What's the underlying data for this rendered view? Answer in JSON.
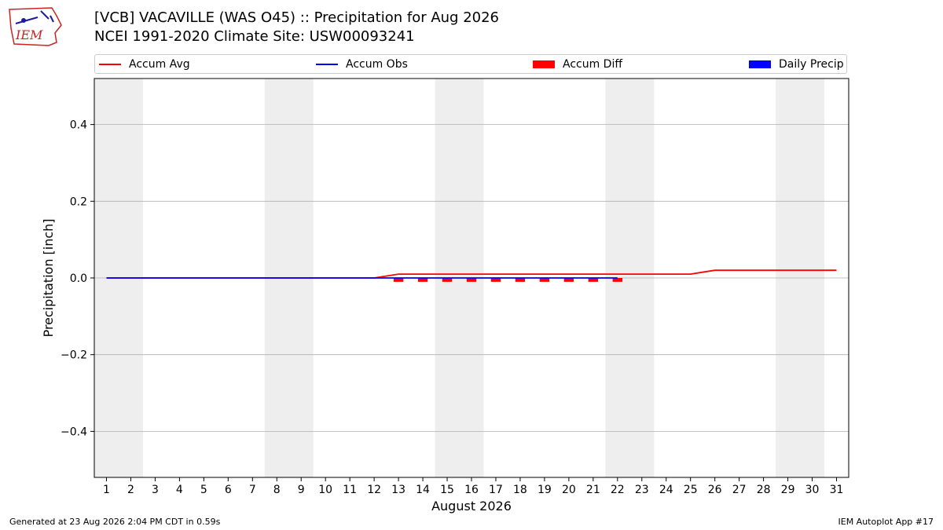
{
  "logo": {
    "text": "IEM"
  },
  "header": {
    "title_line1": "[VCB] VACAVILLE (WAS O45) :: Precipitation for Aug 2026",
    "title_line2": "NCEI 1991-2020 Climate Site: USW00093241"
  },
  "legend": {
    "accum_avg": "Accum Avg",
    "accum_obs": "Accum Obs",
    "accum_diff": "Accum Diff",
    "daily_precip": "Daily Precip"
  },
  "colors": {
    "accum_avg": "#ff0000",
    "accum_obs": "#0000ff",
    "accum_diff": "#ff0000",
    "daily_precip": "#0000ff",
    "weekend_shade": "#eeeeee",
    "grid": "#b0b0b0"
  },
  "footer": {
    "generated": "Generated at 23 Aug 2026 2:04 PM CDT in 0.59s",
    "app": "IEM Autoplot App #17"
  },
  "chart_data": {
    "type": "line",
    "xlabel": "August 2026",
    "ylabel": "Precipitation [inch]",
    "xlim": [
      0.5,
      31.5
    ],
    "ylim": [
      -0.52,
      0.52
    ],
    "x_ticks": [
      1,
      2,
      3,
      4,
      5,
      6,
      7,
      8,
      9,
      10,
      11,
      12,
      13,
      14,
      15,
      16,
      17,
      18,
      19,
      20,
      21,
      22,
      23,
      24,
      25,
      26,
      27,
      28,
      29,
      30,
      31
    ],
    "y_ticks": [
      -0.4,
      -0.2,
      0.0,
      0.2,
      0.4
    ],
    "y_tick_labels": [
      "−0.4",
      "−0.2",
      "0.0",
      "0.2",
      "0.4"
    ],
    "grid": "horizontal",
    "legend_position": "top",
    "weekend_shading": [
      [
        1,
        2
      ],
      [
        8,
        9
      ],
      [
        15,
        16
      ],
      [
        22,
        23
      ],
      [
        29,
        30
      ]
    ],
    "series": [
      {
        "name": "Accum Avg",
        "kind": "line",
        "x": [
          1,
          2,
          3,
          4,
          5,
          6,
          7,
          8,
          9,
          10,
          11,
          12,
          13,
          14,
          15,
          16,
          17,
          18,
          19,
          20,
          21,
          22,
          23,
          24,
          25,
          26,
          27,
          28,
          29,
          30,
          31
        ],
        "values": [
          0,
          0,
          0,
          0,
          0,
          0,
          0,
          0,
          0,
          0,
          0,
          0,
          0.01,
          0.01,
          0.01,
          0.01,
          0.01,
          0.01,
          0.01,
          0.01,
          0.01,
          0.01,
          0.01,
          0.01,
          0.01,
          0.02,
          0.02,
          0.02,
          0.02,
          0.02,
          0.02
        ]
      },
      {
        "name": "Accum Obs",
        "kind": "line",
        "x": [
          1,
          2,
          3,
          4,
          5,
          6,
          7,
          8,
          9,
          10,
          11,
          12,
          13,
          14,
          15,
          16,
          17,
          18,
          19,
          20,
          21,
          22
        ],
        "values": [
          0,
          0,
          0,
          0,
          0,
          0,
          0,
          0,
          0,
          0,
          0,
          0,
          0,
          0,
          0,
          0,
          0,
          0,
          0,
          0,
          0,
          0
        ]
      },
      {
        "name": "Accum Diff",
        "kind": "bar",
        "x": [
          13,
          14,
          15,
          16,
          17,
          18,
          19,
          20,
          21,
          22
        ],
        "values": [
          -0.01,
          -0.01,
          -0.01,
          -0.01,
          -0.01,
          -0.01,
          -0.01,
          -0.01,
          -0.01,
          -0.01
        ]
      },
      {
        "name": "Daily Precip",
        "kind": "bar",
        "x": [],
        "values": []
      }
    ]
  }
}
